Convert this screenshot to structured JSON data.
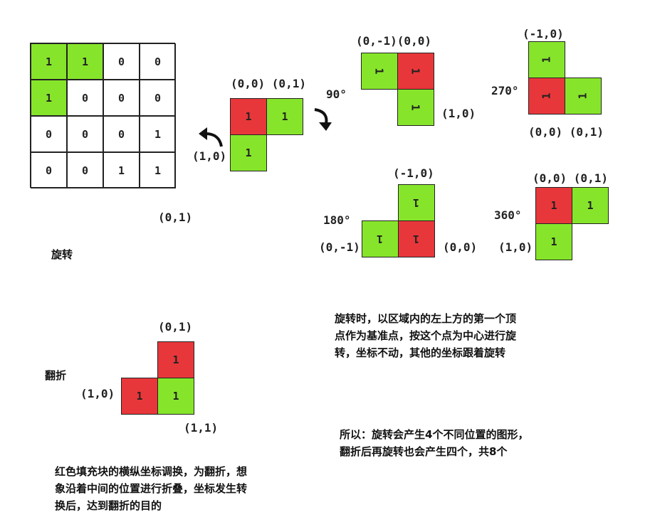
{
  "matrix": [
    [
      "1",
      "1",
      "0",
      "0"
    ],
    [
      "1",
      "0",
      "0",
      "0"
    ],
    [
      "0",
      "0",
      "0",
      "1"
    ],
    [
      "0",
      "0",
      "1",
      "1"
    ]
  ],
  "matrix_colors": {
    "filled": "#86e52b",
    "empty": "#ffffff"
  },
  "colors": {
    "green": "#86e52b",
    "red": "#e8373a"
  },
  "base_shape": {
    "coord_00_01": "(0,0) (0,1)",
    "coord_10": "(1,0)",
    "cells": [
      "1",
      "1",
      "1"
    ]
  },
  "below_matrix_coord": "(0,1)",
  "rotate_title": "旋转",
  "r90": {
    "angle": "90°",
    "coord_top": "(0,-1)(0,0)",
    "coord_right": "(1,0)",
    "cells": [
      "1",
      "1",
      "1"
    ]
  },
  "r270": {
    "angle": "270°",
    "coord_top": "(-1,0)",
    "coord_bottom": "(0,0) (0,1)",
    "cells": [
      "1",
      "1",
      "1"
    ]
  },
  "r180": {
    "angle": "180°",
    "coord_top": "(-1,0)",
    "coord_left": "(0,-1)",
    "coord_right": "(0,0)",
    "cells": [
      "1",
      "1",
      "1"
    ]
  },
  "r360": {
    "angle": "360°",
    "coord_top": "(0,0) (0,1)",
    "coord_left": "(1,0)",
    "cells": [
      "1",
      "1",
      "1"
    ]
  },
  "rotate_desc": [
    "旋转时，以区域内的左上方的第一个顶",
    "点作为基准点，按这个点为中心进行旋",
    "转，坐标不动，其他的坐标跟着旋转"
  ],
  "flip_title": "翻折",
  "flip": {
    "coord_top": "(0,1)",
    "coord_left": "(1,0)",
    "coord_bottom": "(1,1)",
    "cells": [
      "1",
      "1",
      "1"
    ]
  },
  "result_desc": [
    "所以：旋转会产生4个不同位置的图形，",
    "翻折后再旋转也会产生四个，共8个"
  ],
  "flip_desc": [
    "红色填充块的横纵坐标调换，为翻折，想",
    "象沿着中间的位置进行折叠，坐标发生转",
    "换后，达到翻折的目的"
  ]
}
